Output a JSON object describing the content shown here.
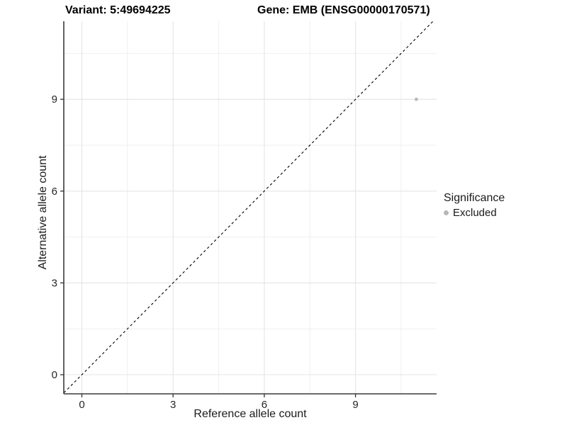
{
  "title": {
    "variant": "Variant: 5:49694225",
    "gene": "Gene: EMB (ENSG00000170571)"
  },
  "axes": {
    "x_label": "Reference allele count",
    "y_label": "Alternative allele count"
  },
  "legend": {
    "title": "Significance",
    "items": [
      {
        "label": "Excluded",
        "color": "#b8b8b8"
      }
    ]
  },
  "chart_data": {
    "type": "scatter",
    "title": "Variant: 5:49694225   Gene: EMB (ENSG00000170571)",
    "xlabel": "Reference allele count",
    "ylabel": "Alternative allele count",
    "x_ticks": [
      0,
      3,
      6,
      9
    ],
    "y_ticks": [
      0,
      3,
      6,
      9
    ],
    "x_minor_ticks": [
      1.5,
      4.5,
      7.5,
      10.5
    ],
    "y_minor_ticks": [
      1.5,
      4.5,
      7.5,
      10.5
    ],
    "xlim": [
      -0.59,
      11.67
    ],
    "ylim": [
      -0.63,
      11.55
    ],
    "grid": true,
    "legend_position": "right",
    "series": [
      {
        "name": "Excluded",
        "color": "#b8b8b8",
        "points": [
          {
            "x": 11,
            "y": 9
          }
        ]
      }
    ],
    "reference_line": {
      "kind": "identity",
      "equation": "y = x",
      "style": "dashed",
      "color": "#000000"
    }
  },
  "colors": {
    "point": "#b8b8b8",
    "grid_major": "#e4e4e4",
    "grid_minor": "#efefef",
    "axis_line": "#3a3a3a",
    "tick": "#333333",
    "tick_label": "#262626"
  }
}
